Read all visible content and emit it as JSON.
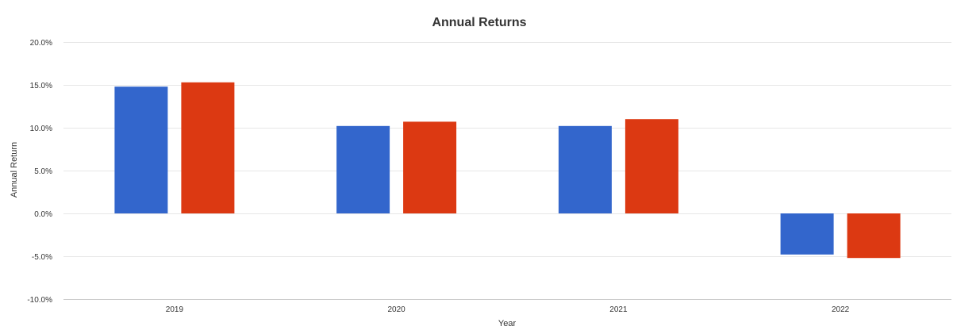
{
  "chart_data": {
    "type": "bar",
    "title": "Annual Returns",
    "xlabel": "Year",
    "ylabel": "Annual Return",
    "categories": [
      "2019",
      "2020",
      "2021",
      "2022"
    ],
    "series": [
      {
        "color": "#3366cc",
        "values": [
          14.8,
          10.2,
          10.2,
          -4.8
        ]
      },
      {
        "color": "#dc3912",
        "values": [
          15.3,
          10.7,
          11.0,
          -5.2
        ]
      }
    ],
    "ylim": [
      -10,
      20
    ],
    "yticks": [
      20,
      15,
      10,
      5,
      0,
      -5,
      -10
    ],
    "ytick_labels": [
      "20.0%",
      "15.0%",
      "10.0%",
      "5.0%",
      "0.0%",
      "-5.0%",
      "-10.0%"
    ],
    "grid": true,
    "legend": "none"
  }
}
